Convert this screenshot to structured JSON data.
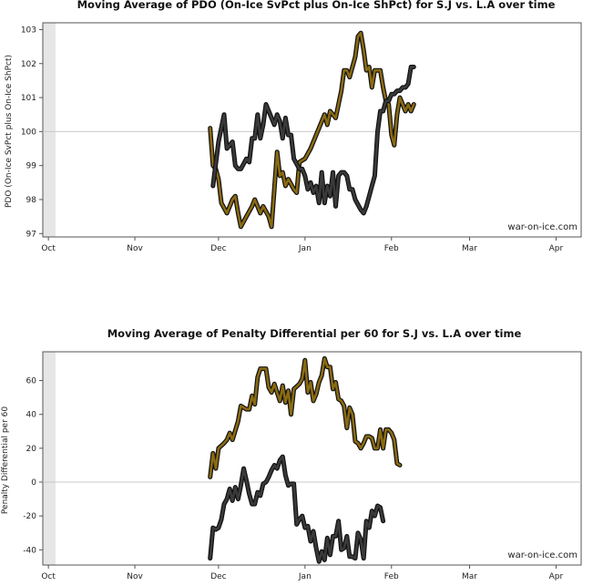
{
  "watermark": "war-on-ice.com",
  "colors": {
    "team1": "#8a6a12",
    "team2": "#3a3a3a",
    "refline": "#c8c8c8",
    "panel_band": "#e6e6e6"
  },
  "x_ticks": [
    "Oct",
    "Nov",
    "Dec",
    "Jan",
    "Feb",
    "Mar",
    "Apr"
  ],
  "chart_data": [
    {
      "type": "line",
      "title": "Moving Average of PDO (On-Ice SvPct plus On-Ice ShPct) for S.J vs. L.A over time",
      "ylabel": "PDO (On-Ice SvPct plus On-Ice ShPct)",
      "xlabel": "",
      "x_domain": [
        "Sep 29",
        "Apr 10"
      ],
      "ylim": [
        96.9,
        103.2
      ],
      "yticks": [
        97,
        98,
        99,
        100,
        101,
        102,
        103
      ],
      "ref_line": 100,
      "series": [
        {
          "color": "#8a6a12",
          "points": [
            [
              60,
              100.1
            ],
            [
              61,
              99.0
            ],
            [
              62,
              98.9
            ],
            [
              63,
              98.6
            ],
            [
              64,
              97.9
            ],
            [
              66,
              97.6
            ],
            [
              68,
              98.0
            ],
            [
              69,
              98.1
            ],
            [
              70,
              97.6
            ],
            [
              71,
              97.2
            ],
            [
              73,
              97.5
            ],
            [
              75,
              97.8
            ],
            [
              76,
              98.0
            ],
            [
              78,
              97.6
            ],
            [
              79,
              97.8
            ],
            [
              81,
              97.5
            ],
            [
              82,
              97.2
            ],
            [
              84,
              99.4
            ],
            [
              85,
              98.7
            ],
            [
              86,
              98.8
            ],
            [
              87,
              98.4
            ],
            [
              88,
              98.6
            ],
            [
              90,
              98.3
            ],
            [
              91,
              98.2
            ],
            [
              92,
              99.1
            ],
            [
              94,
              99.2
            ],
            [
              96,
              99.5
            ],
            [
              98,
              99.9
            ],
            [
              99,
              100.1
            ],
            [
              101,
              100.5
            ],
            [
              102,
              100.2
            ],
            [
              103,
              100.6
            ],
            [
              104,
              100.5
            ],
            [
              105,
              100.4
            ],
            [
              107,
              101.2
            ],
            [
              108,
              101.8
            ],
            [
              109,
              101.8
            ],
            [
              110,
              101.6
            ],
            [
              112,
              102.2
            ],
            [
              113,
              102.8
            ],
            [
              114,
              102.9
            ],
            [
              115,
              102.4
            ],
            [
              116,
              101.8
            ],
            [
              117,
              101.9
            ],
            [
              118,
              101.3
            ],
            [
              119,
              101.8
            ],
            [
              121,
              101.8
            ],
            [
              122,
              101.3
            ],
            [
              123,
              100.9
            ],
            [
              124,
              100.8
            ],
            [
              125,
              99.9
            ],
            [
              126,
              99.6
            ],
            [
              127,
              100.5
            ],
            [
              128,
              101.0
            ],
            [
              130,
              100.6
            ],
            [
              131,
              100.8
            ],
            [
              132,
              100.6
            ],
            [
              133,
              100.8
            ]
          ]
        },
        {
          "color": "#3a3a3a",
          "points": [
            [
              61,
              98.4
            ],
            [
              63,
              99.7
            ],
            [
              65,
              100.5
            ],
            [
              66,
              99.5
            ],
            [
              68,
              99.7
            ],
            [
              69,
              99.0
            ],
            [
              70,
              98.9
            ],
            [
              71,
              98.9
            ],
            [
              73,
              99.2
            ],
            [
              74,
              99.1
            ],
            [
              75,
              99.8
            ],
            [
              76,
              99.8
            ],
            [
              77,
              100.5
            ],
            [
              78,
              99.8
            ],
            [
              79,
              100.2
            ],
            [
              80,
              100.8
            ],
            [
              82,
              100.4
            ],
            [
              83,
              100.2
            ],
            [
              84,
              100.5
            ],
            [
              85,
              100.3
            ],
            [
              86,
              99.8
            ],
            [
              87,
              100.4
            ],
            [
              88,
              99.9
            ],
            [
              89,
              99.9
            ],
            [
              90,
              99.2
            ],
            [
              92,
              98.9
            ],
            [
              93,
              98.9
            ],
            [
              94,
              98.7
            ],
            [
              95,
              98.3
            ],
            [
              96,
              98.5
            ],
            [
              97,
              98.2
            ],
            [
              98,
              98.4
            ],
            [
              99,
              97.9
            ],
            [
              100,
              98.8
            ],
            [
              101,
              97.9
            ],
            [
              102,
              98.4
            ],
            [
              103,
              98.1
            ],
            [
              104,
              98.8
            ],
            [
              105,
              97.8
            ],
            [
              106,
              98.7
            ],
            [
              107,
              98.8
            ],
            [
              108,
              98.8
            ],
            [
              109,
              98.7
            ],
            [
              110,
              98.3
            ],
            [
              111,
              98.3
            ],
            [
              112,
              98.0
            ],
            [
              114,
              97.7
            ],
            [
              115,
              97.6
            ],
            [
              116,
              97.8
            ],
            [
              117,
              98.1
            ],
            [
              118,
              98.4
            ],
            [
              119,
              98.7
            ],
            [
              120,
              100.0
            ],
            [
              121,
              100.6
            ],
            [
              122,
              100.6
            ],
            [
              123,
              100.9
            ],
            [
              124,
              100.9
            ],
            [
              125,
              101.1
            ],
            [
              126,
              101.1
            ],
            [
              127,
              101.2
            ],
            [
              128,
              101.2
            ],
            [
              129,
              101.3
            ],
            [
              130,
              101.3
            ],
            [
              131,
              101.4
            ],
            [
              132,
              101.9
            ],
            [
              133,
              101.9
            ]
          ]
        }
      ]
    },
    {
      "type": "line",
      "title": "Moving Average of Penalty Differential per 60 for S.J vs. L.A over time",
      "ylabel": "Penalty Differential per 60",
      "xlabel": "",
      "x_domain": [
        "Sep 29",
        "Apr 10"
      ],
      "ylim": [
        -49,
        77
      ],
      "yticks": [
        -40,
        -20,
        0,
        20,
        40,
        60
      ],
      "ref_line": 0,
      "series": [
        {
          "color": "#8a6a12",
          "points": [
            [
              60,
              3
            ],
            [
              61,
              17
            ],
            [
              62,
              8
            ],
            [
              63,
              20
            ],
            [
              65,
              23
            ],
            [
              66,
              25
            ],
            [
              67,
              29
            ],
            [
              68,
              25
            ],
            [
              70,
              36
            ],
            [
              71,
              45
            ],
            [
              73,
              43
            ],
            [
              74,
              43
            ],
            [
              75,
              51
            ],
            [
              76,
              46
            ],
            [
              77,
              62
            ],
            [
              78,
              67
            ],
            [
              80,
              67
            ],
            [
              81,
              56
            ],
            [
              82,
              53
            ],
            [
              83,
              58
            ],
            [
              84,
              53
            ],
            [
              85,
              48
            ],
            [
              86,
              57
            ],
            [
              87,
              47
            ],
            [
              88,
              54
            ],
            [
              89,
              40
            ],
            [
              90,
              55
            ],
            [
              92,
              58
            ],
            [
              93,
              61
            ],
            [
              94,
              72
            ],
            [
              95,
              53
            ],
            [
              96,
              59
            ],
            [
              97,
              48
            ],
            [
              98,
              52
            ],
            [
              99,
              59
            ],
            [
              100,
              63
            ],
            [
              101,
              73
            ],
            [
              102,
              68
            ],
            [
              103,
              68
            ],
            [
              104,
              55
            ],
            [
              105,
              59
            ],
            [
              106,
              49
            ],
            [
              107,
              48
            ],
            [
              108,
              45
            ],
            [
              109,
              32
            ],
            [
              110,
              44
            ],
            [
              111,
              40
            ],
            [
              112,
              24
            ],
            [
              113,
              23
            ],
            [
              114,
              20
            ],
            [
              115,
              23
            ],
            [
              116,
              27
            ],
            [
              117,
              27
            ],
            [
              118,
              26
            ],
            [
              119,
              20
            ],
            [
              120,
              20
            ],
            [
              121,
              31
            ],
            [
              122,
              20
            ],
            [
              123,
              31
            ],
            [
              124,
              31
            ],
            [
              125,
              29
            ],
            [
              126,
              25
            ],
            [
              127,
              11
            ],
            [
              128,
              10
            ]
          ]
        },
        {
          "color": "#3a3a3a",
          "points": [
            [
              60,
              -45
            ],
            [
              61,
              -27
            ],
            [
              62,
              -28
            ],
            [
              63,
              -27
            ],
            [
              64,
              -22
            ],
            [
              65,
              -13
            ],
            [
              66,
              -10
            ],
            [
              67,
              -4
            ],
            [
              68,
              -11
            ],
            [
              69,
              -3
            ],
            [
              70,
              -10
            ],
            [
              71,
              -2
            ],
            [
              72,
              8
            ],
            [
              73,
              1
            ],
            [
              74,
              -7
            ],
            [
              75,
              -13
            ],
            [
              76,
              -13
            ],
            [
              77,
              -6
            ],
            [
              78,
              -8
            ],
            [
              79,
              -1
            ],
            [
              80,
              0
            ],
            [
              81,
              3
            ],
            [
              82,
              7
            ],
            [
              83,
              10
            ],
            [
              84,
              8
            ],
            [
              85,
              13
            ],
            [
              86,
              15
            ],
            [
              87,
              4
            ],
            [
              88,
              -2
            ],
            [
              89,
              -1
            ],
            [
              90,
              -1
            ],
            [
              91,
              -25
            ],
            [
              92,
              -22
            ],
            [
              93,
              -20
            ],
            [
              94,
              -27
            ],
            [
              95,
              -26
            ],
            [
              96,
              -35
            ],
            [
              97,
              -29
            ],
            [
              98,
              -39
            ],
            [
              99,
              -47
            ],
            [
              100,
              -41
            ],
            [
              101,
              -46
            ],
            [
              102,
              -33
            ],
            [
              103,
              -43
            ],
            [
              104,
              -32
            ],
            [
              105,
              -32
            ],
            [
              106,
              -23
            ],
            [
              107,
              -40
            ],
            [
              108,
              -39
            ],
            [
              109,
              -32
            ],
            [
              110,
              -44
            ],
            [
              111,
              -44
            ],
            [
              112,
              -45
            ],
            [
              113,
              -30
            ],
            [
              114,
              -34
            ],
            [
              115,
              -45
            ],
            [
              116,
              -23
            ],
            [
              117,
              -27
            ],
            [
              118,
              -17
            ],
            [
              119,
              -20
            ],
            [
              120,
              -14
            ],
            [
              121,
              -15
            ],
            [
              122,
              -23
            ]
          ]
        }
      ]
    }
  ]
}
